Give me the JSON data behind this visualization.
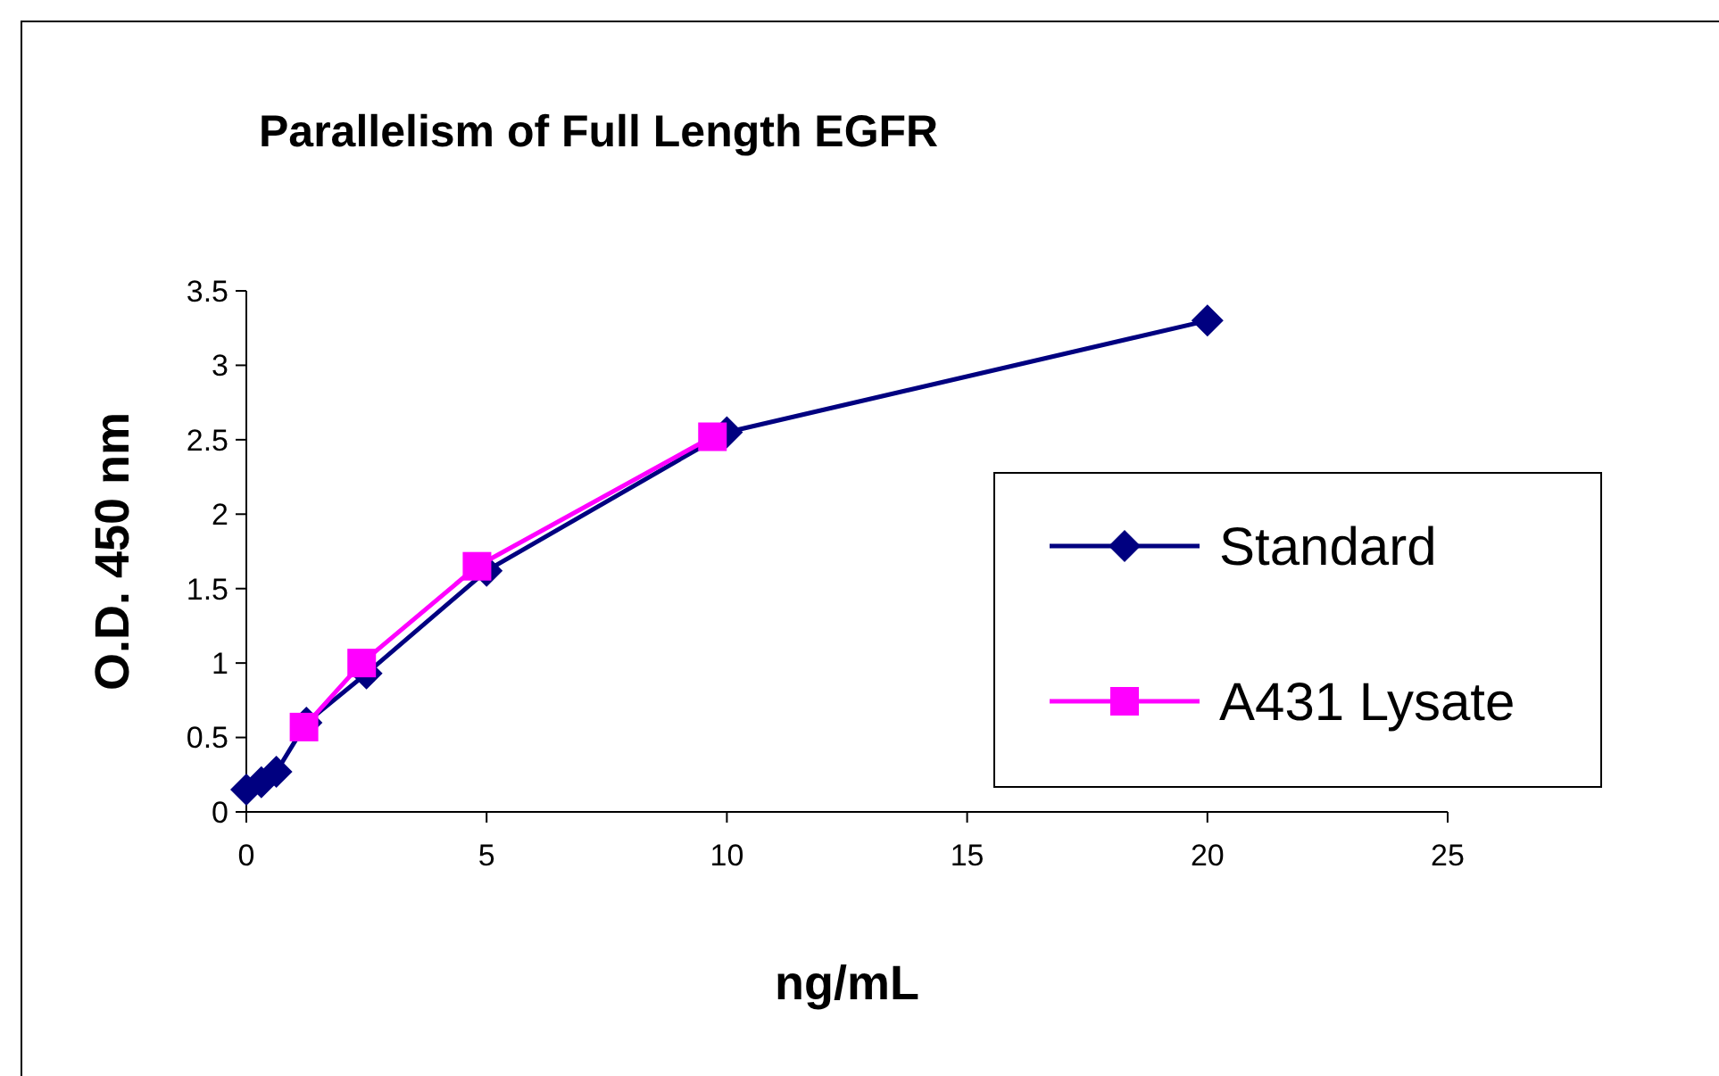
{
  "chart_data": {
    "type": "line",
    "title": "Parallelism of Full Length EGFR",
    "xlabel": "ng/mL",
    "ylabel": "O.D. 450 nm",
    "xlim": [
      0,
      25
    ],
    "xticks": [
      0,
      5,
      10,
      15,
      20,
      25
    ],
    "ylim": [
      0,
      3.5
    ],
    "yticks": [
      0,
      0.5,
      1,
      1.5,
      2,
      2.5,
      3,
      3.5
    ],
    "grid": false,
    "legend": "right",
    "series": [
      {
        "name": "Standard",
        "color": "#000080",
        "marker": "diamond",
        "x": [
          0,
          0.3125,
          0.625,
          1.25,
          2.5,
          5,
          10,
          20
        ],
        "values": [
          0.15,
          0.2,
          0.27,
          0.6,
          0.93,
          1.62,
          2.55,
          3.3
        ]
      },
      {
        "name": "A431 Lysate",
        "color": "#ff00ff",
        "marker": "square",
        "x": [
          1.2,
          2.4,
          4.8,
          9.7
        ],
        "values": [
          0.57,
          1.0,
          1.65,
          2.52
        ]
      }
    ]
  }
}
